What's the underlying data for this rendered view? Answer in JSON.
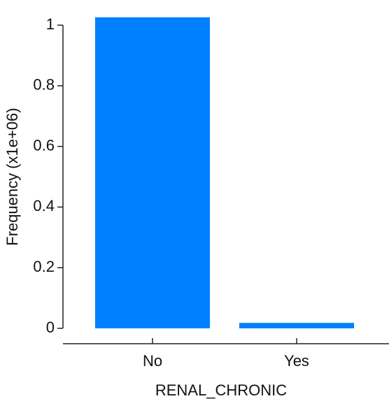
{
  "chart_data": {
    "type": "bar",
    "categories": [
      "No",
      "Yes"
    ],
    "values": [
      1.026,
      0.018
    ],
    "xlabel": "RENAL_CHRONIC",
    "ylabel": "Frequency (x1e+06)",
    "ylim": [
      0,
      1
    ],
    "yticks": [
      0,
      0.2,
      0.4,
      0.6,
      0.8,
      1
    ],
    "ytick_labels": [
      "0",
      "0.2",
      "0.4",
      "0.6",
      "0.8",
      "1"
    ],
    "grid": false,
    "legend": "none",
    "bar_color": "#0080ff"
  }
}
